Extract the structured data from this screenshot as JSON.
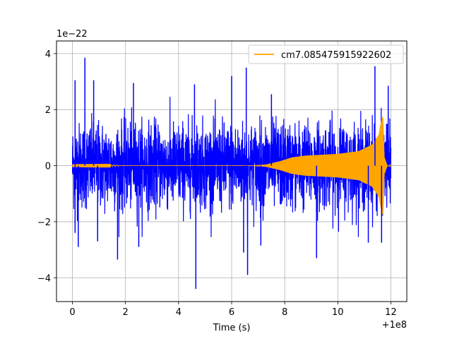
{
  "chart_data": {
    "type": "line",
    "title": "",
    "xlabel": "Time (s)",
    "ylabel": "",
    "x_offset_label": "+1e8",
    "y_scale_label": "1e−22",
    "xlim": [
      -0.6,
      12.6
    ],
    "ylim": [
      -4.85,
      4.45
    ],
    "x_ticks": [
      0,
      2,
      4,
      6,
      8,
      10,
      12
    ],
    "x_tick_labels": [
      "0",
      "2",
      "4",
      "6",
      "8",
      "10",
      "12"
    ],
    "y_ticks": [
      -4,
      -2,
      0,
      2,
      4
    ],
    "y_tick_labels": [
      "−4",
      "−2",
      "0",
      "2",
      "4"
    ],
    "grid": true,
    "legend_position": "top-right",
    "series": [
      {
        "kind": "noise",
        "color": "#0000ff",
        "x_range": [
          0,
          12
        ],
        "typical_envelope": 1.7,
        "spikes": [
          {
            "x": 0.1,
            "y": 3.05
          },
          {
            "x": 0.47,
            "y": 3.85
          },
          {
            "x": 0.8,
            "y": 3.05
          },
          {
            "x": 2.3,
            "y": 2.95
          },
          {
            "x": 4.6,
            "y": 2.9
          },
          {
            "x": 6.0,
            "y": 3.2
          },
          {
            "x": 6.55,
            "y": 3.5
          },
          {
            "x": 7.5,
            "y": 2.55
          },
          {
            "x": 11.4,
            "y": 3.55
          },
          {
            "x": 11.9,
            "y": 2.85
          },
          {
            "x": 0.1,
            "y": -2.4
          },
          {
            "x": 0.22,
            "y": -2.9
          },
          {
            "x": 0.95,
            "y": -2.7
          },
          {
            "x": 1.7,
            "y": -3.35
          },
          {
            "x": 2.5,
            "y": -2.9
          },
          {
            "x": 4.65,
            "y": -4.4
          },
          {
            "x": 6.45,
            "y": -3.1
          },
          {
            "x": 6.6,
            "y": -3.9
          },
          {
            "x": 7.1,
            "y": -2.85
          },
          {
            "x": 9.2,
            "y": -3.3
          },
          {
            "x": 11.15,
            "y": -2.75
          },
          {
            "x": 11.65,
            "y": -2.75
          }
        ]
      },
      {
        "name": "cm7.085475915922602",
        "kind": "chirp",
        "color": "#ffa500",
        "x_range": [
          0,
          12
        ],
        "envelope": [
          [
            0,
            0.005
          ],
          [
            6.8,
            0.01
          ],
          [
            7.3,
            0.04
          ],
          [
            7.8,
            0.15
          ],
          [
            8.3,
            0.3
          ],
          [
            8.8,
            0.36
          ],
          [
            10.0,
            0.42
          ],
          [
            10.8,
            0.52
          ],
          [
            11.3,
            0.75
          ],
          [
            11.55,
            1.1
          ],
          [
            11.65,
            1.6
          ],
          [
            11.7,
            1.75
          ],
          [
            11.75,
            0.3
          ],
          [
            11.85,
            0.03
          ],
          [
            12.0,
            0.0
          ]
        ]
      }
    ]
  }
}
